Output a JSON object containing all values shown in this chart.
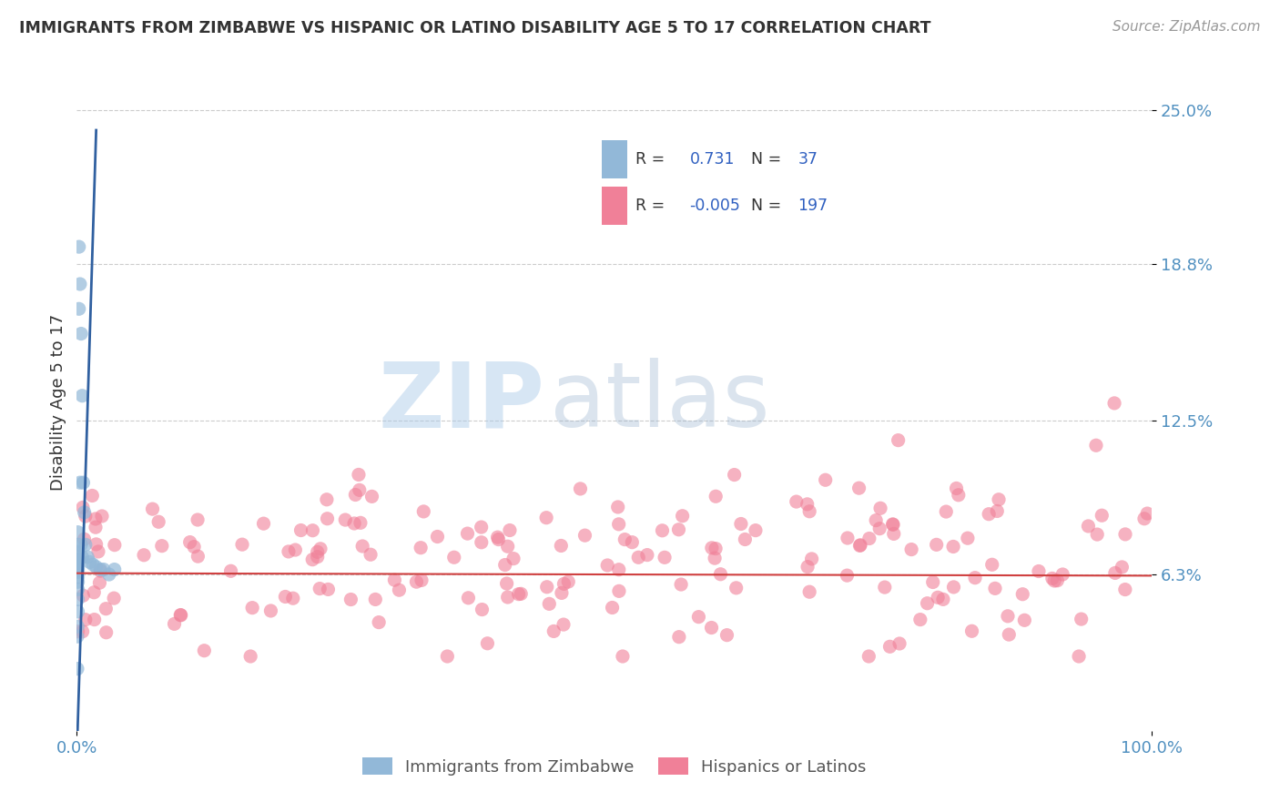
{
  "title": "IMMIGRANTS FROM ZIMBABWE VS HISPANIC OR LATINO DISABILITY AGE 5 TO 17 CORRELATION CHART",
  "source": "Source: ZipAtlas.com",
  "ylabel": "Disability Age 5 to 17",
  "xlim": [
    0.0,
    1.0
  ],
  "ylim": [
    0.0,
    0.265
  ],
  "ytick_vals": [
    0.063,
    0.125,
    0.188,
    0.25
  ],
  "ytick_labels": [
    "6.3%",
    "12.5%",
    "18.8%",
    "25.0%"
  ],
  "xtick_vals": [
    0.0,
    1.0
  ],
  "xtick_labels": [
    "0.0%",
    "100.0%"
  ],
  "blue_color": "#92b8d8",
  "pink_color": "#f08098",
  "blue_line_color": "#3060a0",
  "red_line_color": "#d04040",
  "background_color": "#ffffff",
  "grid_color": "#cccccc",
  "title_color": "#333333",
  "ylabel_color": "#333333",
  "tick_color": "#5090c0",
  "legend_R1": "R =",
  "legend_V1": "0.731",
  "legend_N1_label": "N =",
  "legend_N1": "37",
  "legend_R2": "R =",
  "legend_V2": "-0.005",
  "legend_N2_label": "N =",
  "legend_N2": "197",
  "watermark_zip": "ZIP",
  "watermark_atlas": "atlas",
  "bottom_label1": "Immigrants from Zimbabwe",
  "bottom_label2": "Hispanics or Latinos"
}
